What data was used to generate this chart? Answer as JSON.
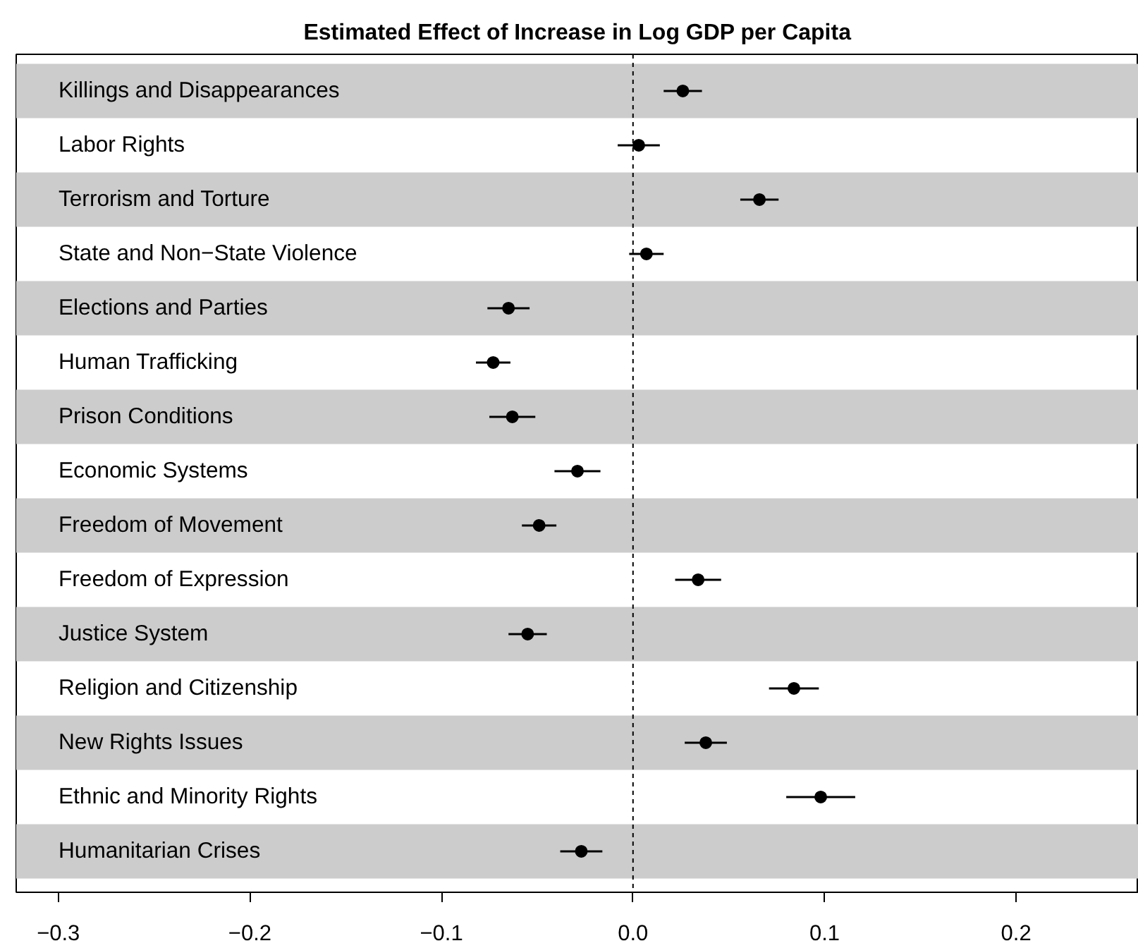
{
  "chart_data": {
    "type": "scatter",
    "orientation": "horizontal",
    "title": "Estimated Effect of Increase in Log GDP per Capita",
    "categories": [
      "Killings and Disappearances",
      "Labor Rights",
      "Terrorism and Torture",
      "State and Non−State Violence",
      "Elections and Parties",
      "Human Trafficking",
      "Prison Conditions",
      "Economic Systems",
      "Freedom of Movement",
      "Freedom of Expression",
      "Justice System",
      "Religion and Citizenship",
      "New Rights Issues",
      "Ethnic and Minority Rights",
      "Humanitarian Crises"
    ],
    "values": [
      0.026,
      0.003,
      0.066,
      0.007,
      -0.065,
      -0.073,
      -0.063,
      -0.029,
      -0.049,
      0.034,
      -0.055,
      0.084,
      0.038,
      0.098,
      -0.027
    ],
    "errors": [
      0.01,
      0.011,
      0.01,
      0.009,
      0.011,
      0.009,
      0.012,
      0.012,
      0.009,
      0.012,
      0.01,
      0.013,
      0.011,
      0.018,
      0.011
    ],
    "color": "#000000",
    "marker": "circle",
    "xlim": [
      -0.322,
      0.264
    ],
    "xticks": [
      {
        "value": -0.3,
        "label": "−0.3"
      },
      {
        "value": -0.2,
        "label": "−0.2"
      },
      {
        "value": -0.1,
        "label": "−0.1"
      },
      {
        "value": 0,
        "label": "0.0"
      },
      0.1,
      0.2
    ],
    "ref_lines": [
      {
        "axis": "x",
        "value": 0,
        "color": "#000000",
        "line_style": "dashed"
      }
    ],
    "bands": [
      {
        "axis": "y",
        "from": "Killings and Disappearances",
        "to": "Killings and Disappearances",
        "color": "#cccccc"
      },
      {
        "axis": "y",
        "from": "Terrorism and Torture",
        "to": "Terrorism and Torture",
        "color": "#cccccc"
      },
      {
        "axis": "y",
        "from": "Elections and Parties",
        "to": "Elections and Parties",
        "color": "#cccccc"
      },
      {
        "axis": "y",
        "from": "Prison Conditions",
        "to": "Prison Conditions",
        "color": "#cccccc"
      },
      {
        "axis": "y",
        "from": "Freedom of Movement",
        "to": "Freedom of Movement",
        "color": "#cccccc"
      },
      {
        "axis": "y",
        "from": "Justice System",
        "to": "Justice System",
        "color": "#cccccc"
      },
      {
        "axis": "y",
        "from": "New Rights Issues",
        "to": "New Rights Issues",
        "color": "#cccccc"
      },
      {
        "axis": "y",
        "from": "Humanitarian Crises",
        "to": "Humanitarian Crises",
        "color": "#cccccc"
      }
    ]
  }
}
